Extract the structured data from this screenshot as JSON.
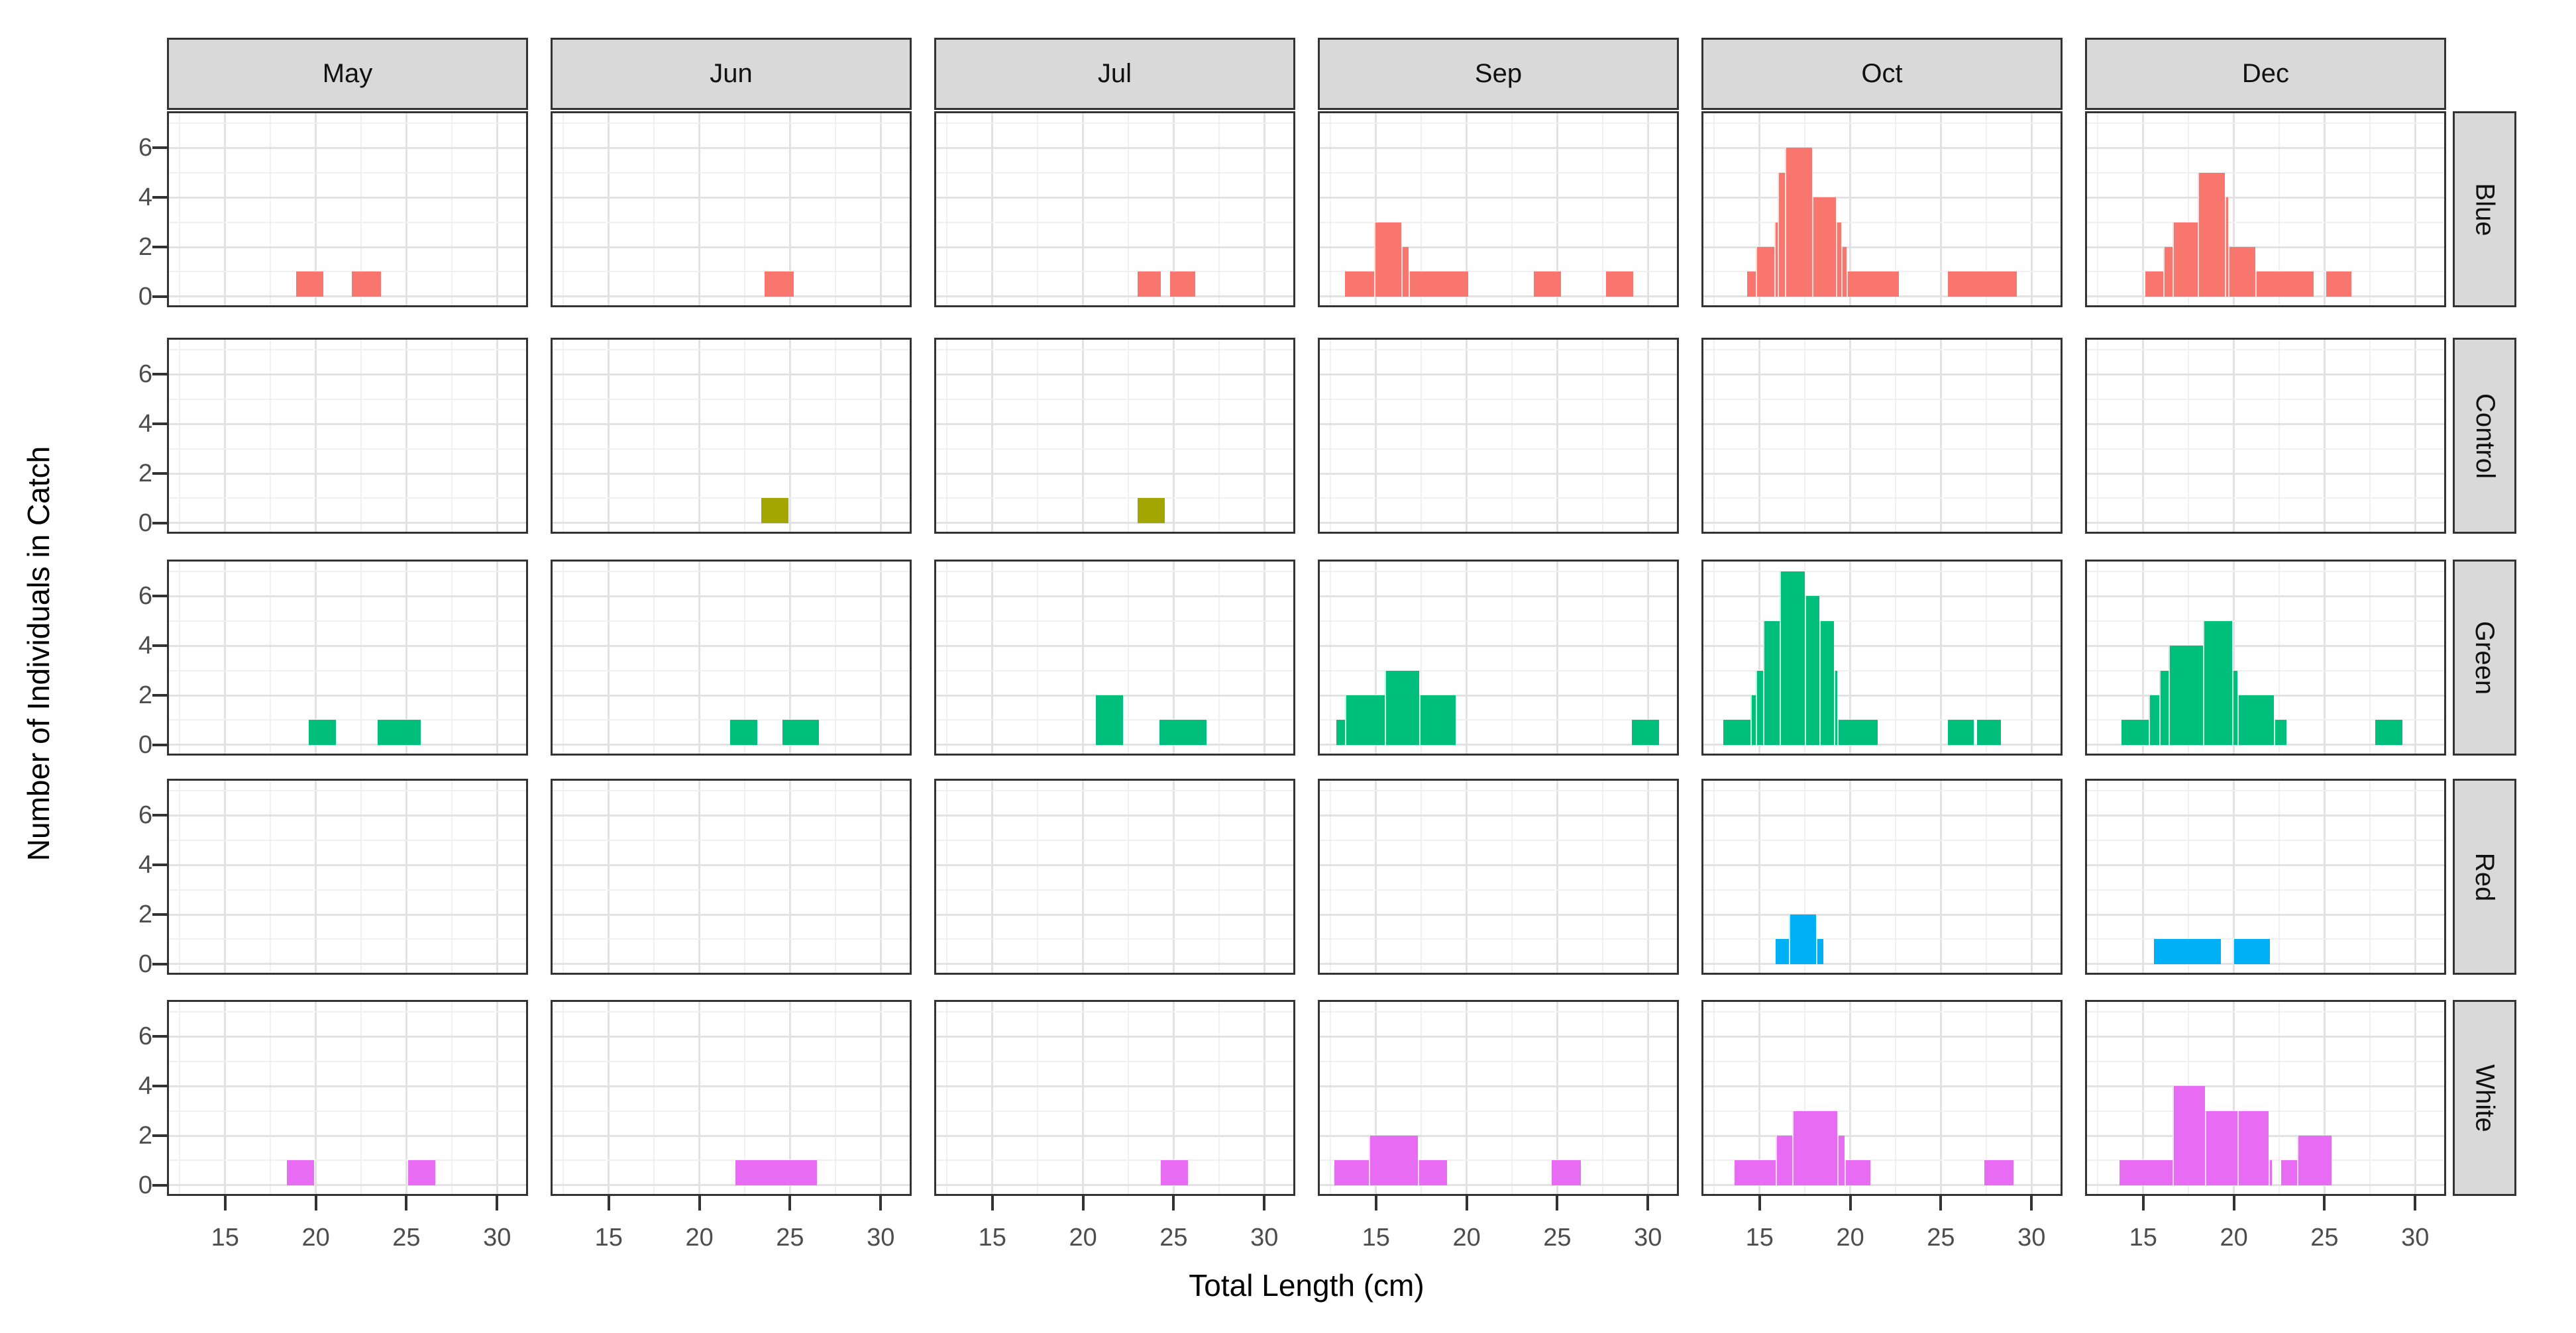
{
  "chart_data": {
    "type": "bar",
    "subtype": "faceted-histogram-grid",
    "xlabel": "Total Length (cm)",
    "ylabel": "Number of Individuals in Catch",
    "col_facets": [
      "May",
      "Jun",
      "Jul",
      "Sep",
      "Oct",
      "Dec"
    ],
    "row_facets": [
      "Blue",
      "Control",
      "Green",
      "Red",
      "White"
    ],
    "x_ticks": [
      15,
      20,
      25,
      30
    ],
    "x_minor_gridlines": [
      12.5,
      17.5,
      22.5,
      27.5
    ],
    "y_ticks": [
      0,
      2,
      4,
      6
    ],
    "y_minor_gridlines": [
      1,
      3,
      5,
      7
    ],
    "x_domain": [
      11.9,
      31.6
    ],
    "y_domain": [
      -0.35,
      7.4
    ],
    "grid": "on",
    "legend": "none",
    "series_colors": {
      "Blue": "#F8766D",
      "Control": "#A3A500",
      "Green": "#00BF7D",
      "Red": "#00B0F6",
      "White": "#E76BF3"
    },
    "style": {
      "strip_fill": "#d9d9d9",
      "strip_border": "#333333",
      "panel_border": "#333333",
      "grid_major": "#e2e2e2",
      "grid_minor": "#f0f0f0",
      "axis_text_color": "#4d4d4d",
      "axis_title_color": "#000000"
    },
    "bars_note": "Each bar is [x_start_cm, x_end_cm, count]",
    "bars": {
      "Blue": {
        "May": [
          [
            18.9,
            20.4,
            1
          ],
          [
            22.0,
            23.6,
            1
          ]
        ],
        "Jun": [
          [
            23.6,
            25.2,
            1
          ]
        ],
        "Jul": [
          [
            23.0,
            24.3,
            1
          ],
          [
            24.8,
            26.2,
            1
          ]
        ],
        "Sep": [
          [
            13.3,
            14.9,
            1
          ],
          [
            14.9,
            16.4,
            3
          ],
          [
            16.4,
            16.8,
            2
          ],
          [
            16.8,
            20.1,
            1
          ],
          [
            23.7,
            25.2,
            1
          ],
          [
            27.7,
            29.2,
            1
          ]
        ],
        "Oct": [
          [
            14.3,
            14.8,
            1
          ],
          [
            14.8,
            15.8,
            2
          ],
          [
            15.8,
            16.0,
            3
          ],
          [
            16.0,
            16.4,
            5
          ],
          [
            16.4,
            17.9,
            6
          ],
          [
            17.9,
            19.2,
            4
          ],
          [
            19.2,
            19.5,
            3
          ],
          [
            19.5,
            19.8,
            2
          ],
          [
            19.8,
            22.7,
            1
          ],
          [
            25.4,
            29.2,
            1
          ]
        ],
        "Dec": [
          [
            15.1,
            16.1,
            1
          ],
          [
            16.1,
            16.6,
            2
          ],
          [
            16.6,
            18.0,
            3
          ],
          [
            18.0,
            19.5,
            5
          ],
          [
            19.5,
            19.7,
            4
          ],
          [
            19.7,
            21.2,
            2
          ],
          [
            21.2,
            24.4,
            1
          ],
          [
            25.1,
            26.5,
            1
          ]
        ]
      },
      "Control": {
        "May": [],
        "Jun": [
          [
            23.4,
            24.9,
            1
          ]
        ],
        "Jul": [
          [
            23.0,
            24.5,
            1
          ]
        ],
        "Sep": [],
        "Oct": [],
        "Dec": []
      },
      "Green": {
        "May": [
          [
            19.6,
            21.1,
            1
          ],
          [
            23.4,
            25.8,
            1
          ]
        ],
        "Jun": [
          [
            21.7,
            23.2,
            1
          ],
          [
            24.6,
            26.6,
            1
          ]
        ],
        "Jul": [
          [
            20.7,
            22.2,
            2
          ],
          [
            24.2,
            26.8,
            1
          ]
        ],
        "Sep": [
          [
            12.8,
            13.3,
            1
          ],
          [
            13.3,
            15.5,
            2
          ],
          [
            15.5,
            17.4,
            3
          ],
          [
            17.4,
            19.4,
            2
          ],
          [
            29.1,
            30.6,
            1
          ]
        ],
        "Oct": [
          [
            13.0,
            14.5,
            1
          ],
          [
            14.5,
            14.8,
            2
          ],
          [
            14.8,
            15.2,
            3
          ],
          [
            15.2,
            16.1,
            5
          ],
          [
            16.1,
            17.5,
            7
          ],
          [
            17.5,
            18.3,
            6
          ],
          [
            18.3,
            19.1,
            5
          ],
          [
            19.1,
            19.3,
            3
          ],
          [
            19.3,
            21.5,
            1
          ],
          [
            25.4,
            26.8,
            1
          ],
          [
            27.0,
            28.3,
            1
          ]
        ],
        "Dec": [
          [
            13.8,
            15.3,
            1
          ],
          [
            15.3,
            15.9,
            2
          ],
          [
            15.9,
            16.4,
            3
          ],
          [
            16.4,
            18.3,
            4
          ],
          [
            18.3,
            19.9,
            5
          ],
          [
            19.9,
            20.2,
            3
          ],
          [
            20.2,
            22.2,
            2
          ],
          [
            22.2,
            22.9,
            1
          ],
          [
            27.8,
            29.3,
            1
          ]
        ]
      },
      "Red": {
        "May": [],
        "Jun": [],
        "Jul": [],
        "Sep": [],
        "Oct": [
          [
            15.9,
            16.6,
            1
          ],
          [
            16.6,
            18.1,
            2
          ],
          [
            18.1,
            18.5,
            1
          ]
        ],
        "Dec": [
          [
            15.6,
            19.3,
            1
          ],
          [
            20.0,
            22.0,
            1
          ]
        ]
      },
      "White": {
        "May": [
          [
            18.4,
            19.9,
            1
          ],
          [
            25.1,
            26.6,
            1
          ]
        ],
        "Jun": [
          [
            22.0,
            26.5,
            1
          ]
        ],
        "Jul": [
          [
            24.3,
            25.8,
            1
          ]
        ],
        "Sep": [
          [
            12.7,
            14.6,
            1
          ],
          [
            14.6,
            17.3,
            2
          ],
          [
            17.3,
            18.9,
            1
          ],
          [
            24.7,
            26.3,
            1
          ]
        ],
        "Oct": [
          [
            13.6,
            15.9,
            1
          ],
          [
            15.9,
            16.8,
            2
          ],
          [
            16.8,
            19.3,
            3
          ],
          [
            19.3,
            19.7,
            2
          ],
          [
            19.7,
            21.1,
            1
          ],
          [
            27.4,
            29.0,
            1
          ]
        ],
        "Dec": [
          [
            13.7,
            16.6,
            1
          ],
          [
            16.6,
            18.4,
            4
          ],
          [
            18.4,
            20.2,
            3
          ],
          [
            20.2,
            21.9,
            3
          ],
          [
            21.9,
            22.1,
            1
          ],
          [
            22.6,
            23.5,
            1
          ],
          [
            23.5,
            25.4,
            2
          ]
        ]
      }
    }
  }
}
